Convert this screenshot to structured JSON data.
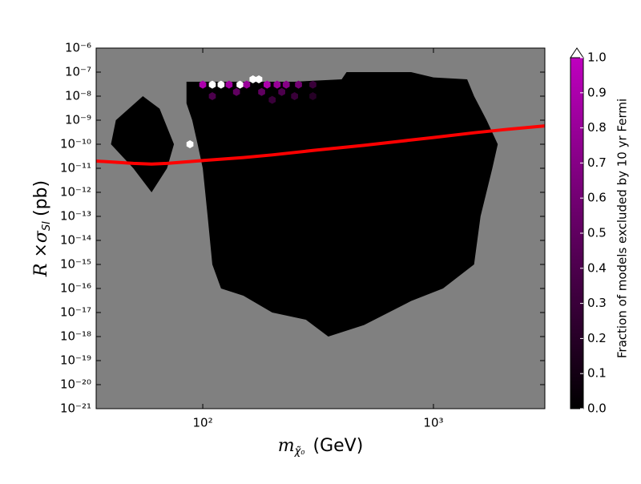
{
  "chart_data": {
    "type": "hexbin",
    "xlabel": {
      "main": "m",
      "sub": "χ̃₀",
      "unit": "(GeV)"
    },
    "ylabel": {
      "main": "R ×σ",
      "sub": "SI",
      "unit": "(pb)"
    },
    "xscale": "log",
    "yscale": "log",
    "xlim": [
      34.5,
      3040
    ],
    "ylim": [
      1e-21,
      1e-06
    ],
    "xticks": [
      {
        "value": 100,
        "label": "10²"
      },
      {
        "value": 1000,
        "label": "10³"
      }
    ],
    "yticks": [
      {
        "value": 1e-21,
        "label": "10⁻²¹"
      },
      {
        "value": 1e-20,
        "label": "10⁻²⁰"
      },
      {
        "value": 1e-19,
        "label": "10⁻¹⁹"
      },
      {
        "value": 1e-18,
        "label": "10⁻¹⁸"
      },
      {
        "value": 1e-17,
        "label": "10⁻¹⁷"
      },
      {
        "value": 1e-16,
        "label": "10⁻¹⁶"
      },
      {
        "value": 1e-15,
        "label": "10⁻¹⁵"
      },
      {
        "value": 1e-14,
        "label": "10⁻¹⁴"
      },
      {
        "value": 1e-13,
        "label": "10⁻¹³"
      },
      {
        "value": 1e-12,
        "label": "10⁻¹²"
      },
      {
        "value": 1e-11,
        "label": "10⁻¹¹"
      },
      {
        "value": 1e-10,
        "label": "10⁻¹⁰"
      },
      {
        "value": 1e-09,
        "label": "10⁻⁹"
      },
      {
        "value": 1e-08,
        "label": "10⁻⁸"
      },
      {
        "value": 1e-07,
        "label": "10⁻⁷"
      },
      {
        "value": 1e-06,
        "label": "10⁻⁶"
      }
    ],
    "background": "#808080",
    "regions": [
      {
        "value": 0,
        "x": [
          85,
          250,
          400,
          420,
          800,
          1000,
          1400,
          1500,
          1700,
          1900,
          1800,
          1600,
          1500,
          1100,
          800,
          500,
          350,
          280,
          200,
          150,
          120,
          110,
          105,
          100,
          95,
          90,
          85
        ],
        "y": [
          4e-08,
          4e-08,
          5e-08,
          1e-07,
          1e-07,
          6e-08,
          5e-08,
          1e-08,
          1e-09,
          1e-10,
          1e-11,
          1e-13,
          1e-15,
          1e-16,
          3e-17,
          3e-18,
          1e-18,
          5e-18,
          1e-17,
          5e-17,
          1e-16,
          1e-15,
          1e-13,
          1e-11,
          1e-10,
          1e-09,
          5e-09
        ]
      },
      {
        "value": 0,
        "x": [
          42,
          55,
          65,
          75,
          70,
          60,
          50,
          40
        ],
        "y": [
          1e-09,
          1e-08,
          3e-09,
          1e-10,
          1e-11,
          1e-12,
          1e-11,
          1e-10
        ]
      }
    ],
    "cells": {
      "x": [
        110,
        120,
        145,
        165,
        175,
        88,
        100,
        130,
        155,
        190,
        210,
        230,
        260,
        140,
        180,
        220,
        110,
        300,
        250,
        200,
        300
      ],
      "y": [
        3e-08,
        3e-08,
        3e-08,
        5e-08,
        5e-08,
        1e-10,
        3e-08,
        3e-08,
        3e-08,
        3e-08,
        3e-08,
        3e-08,
        3e-08,
        1.5e-08,
        1.5e-08,
        1.5e-08,
        1e-08,
        3e-08,
        1e-08,
        7e-09,
        1e-08
      ],
      "values": [
        1.0,
        1.0,
        1.0,
        1.0,
        1.0,
        1.0,
        0.9,
        0.85,
        0.8,
        0.9,
        0.8,
        0.7,
        0.6,
        0.5,
        0.5,
        0.4,
        0.4,
        0.3,
        0.3,
        0.3,
        0.2
      ]
    },
    "curve": {
      "color": "#ff0000",
      "x": [
        34.5,
        50,
        60,
        70,
        100,
        150,
        200,
        300,
        500,
        700,
        1000,
        1500,
        2000,
        3040
      ],
      "y": [
        2e-11,
        1.6e-11,
        1.5e-11,
        1.6e-11,
        2.1e-11,
        2.8e-11,
        3.6e-11,
        5.5e-11,
        9e-11,
        1.3e-10,
        1.9e-10,
        3e-10,
        4e-10,
        5.8e-10
      ]
    },
    "colorbar": {
      "label": "Fraction of models excluded by 10 yr Fermi",
      "cmap": [
        "#000000",
        "#bf00bf"
      ],
      "over_color": "#ffffff",
      "lim": [
        0,
        1
      ],
      "ticks": [
        {
          "value": 0,
          "label": "0.0"
        },
        0.1,
        0.2,
        0.3,
        0.4,
        0.5,
        0.6,
        0.7,
        0.8,
        0.9,
        {
          "value": 1,
          "label": "1.0"
        }
      ]
    }
  }
}
